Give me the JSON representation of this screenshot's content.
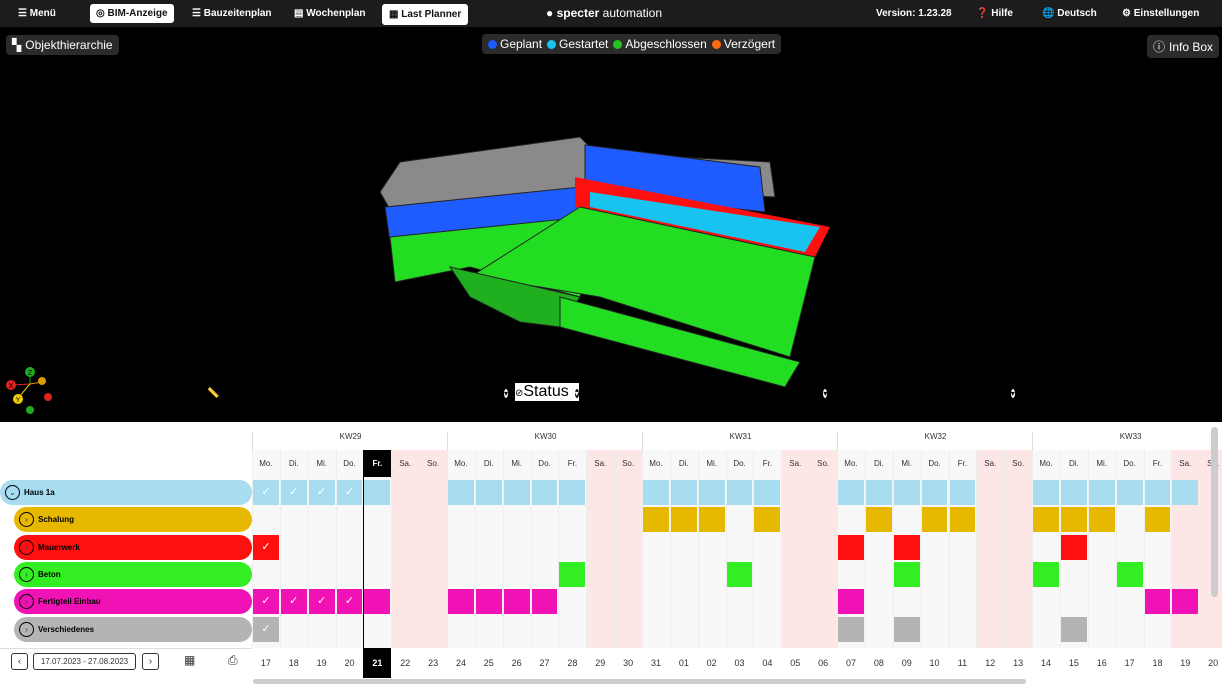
{
  "nav": {
    "menu": "Menü",
    "tabs": [
      "BIM-Anzeige",
      "Bauzeitenplan",
      "Wochenplan",
      "Last Planner"
    ],
    "logo_bold": "specter",
    "logo_light": "automation",
    "version": "Version: 1.23.28",
    "help": "Hilfe",
    "language": "Deutsch",
    "settings": "Einstellungen"
  },
  "viewer": {
    "hierarchy": "Objekthierarchie",
    "info_box": "Info Box",
    "legend": [
      {
        "label": "Geplant",
        "color": "#1a5cff"
      },
      {
        "label": "Gestartet",
        "color": "#19c3f0"
      },
      {
        "label": "Abgeschlossen",
        "color": "#22c422"
      },
      {
        "label": "Verzögert",
        "color": "#ff6a13"
      }
    ],
    "axes": [
      "X",
      "Y",
      "Z"
    ],
    "toolbar": [
      "Messen",
      "Objektteilung",
      "Ausschneiden",
      "Status",
      "Bildschirmfoto",
      "Druckvorschau",
      "Zurücksetzen",
      "Achsen"
    ]
  },
  "schedule": {
    "weeks": [
      "KW29",
      "KW30",
      "KW31",
      "KW32",
      "KW33"
    ],
    "weekdays": [
      "Mo.",
      "Di.",
      "Mi.",
      "Do.",
      "Fr.",
      "Sa.",
      "So."
    ],
    "day_numbers": [
      "17",
      "18",
      "19",
      "20",
      "21",
      "22",
      "23",
      "24",
      "25",
      "26",
      "27",
      "28",
      "29",
      "30",
      "31",
      "01",
      "02",
      "03",
      "04",
      "05",
      "06",
      "07",
      "08",
      "09",
      "10",
      "11",
      "12",
      "13",
      "14",
      "15",
      "16",
      "17",
      "18",
      "19",
      "20"
    ],
    "today_index": 4,
    "rows": [
      {
        "label": "Haus 1a",
        "color": "#a8dcf0",
        "days": [
          0,
          1,
          2,
          3,
          4,
          7,
          8,
          9,
          10,
          11,
          14,
          15,
          16,
          17,
          18,
          21,
          22,
          23,
          24,
          25,
          28,
          29,
          30,
          31,
          32,
          33
        ],
        "checked": [
          0,
          1,
          2,
          3
        ]
      },
      {
        "label": "Schalung",
        "color": "#e6b800",
        "days": [
          14,
          15,
          16,
          18,
          22,
          24,
          25,
          28,
          29,
          30,
          32
        ],
        "checked": []
      },
      {
        "label": "Mauerwerk",
        "color": "#ff1010",
        "days": [
          0,
          21,
          23,
          29
        ],
        "checked": [
          0
        ]
      },
      {
        "label": "Beton",
        "color": "#33ee22",
        "days": [
          11,
          17,
          23,
          28,
          31
        ],
        "checked": []
      },
      {
        "label": "Fertigteil Einbau",
        "color": "#f012b4",
        "days": [
          0,
          1,
          2,
          3,
          4,
          7,
          8,
          9,
          10,
          21,
          32,
          33
        ],
        "checked": [
          0,
          1,
          2,
          3
        ]
      },
      {
        "label": "Verschiedenes",
        "color": "#b4b4b4",
        "days": [
          0,
          21,
          23,
          29
        ],
        "checked": [
          0
        ]
      }
    ],
    "date_range": "17.07.2023 - 27.08.2023"
  }
}
